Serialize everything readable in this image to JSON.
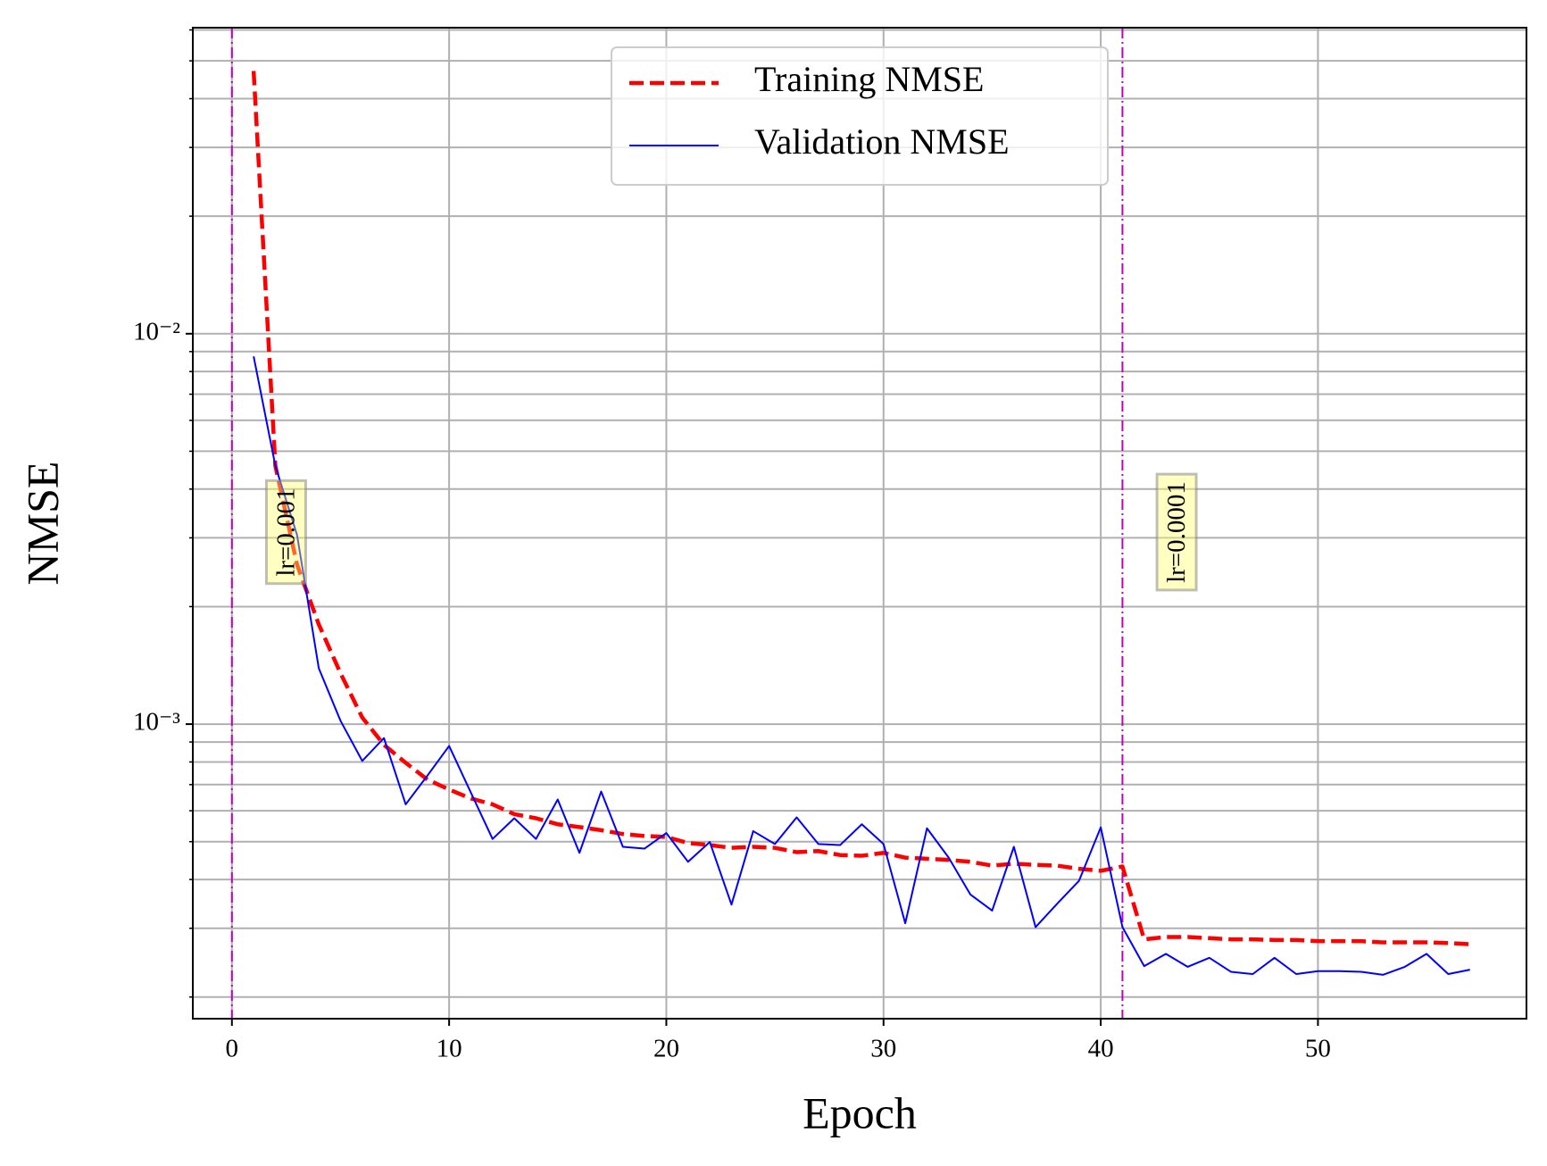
{
  "chart_data": {
    "type": "line",
    "xlabel": "Epoch",
    "ylabel": "NMSE",
    "yscale": "log",
    "grid": true,
    "legend_loc": "upper center",
    "xlim": [
      -1.8,
      59.6
    ],
    "ylim": [
      0.000176,
      0.0608
    ],
    "xticks": [
      0,
      10,
      20,
      30,
      40,
      50
    ],
    "yticks": [
      {
        "value": 0.001,
        "label": "10⁻³"
      },
      {
        "value": 0.01,
        "label": "10⁻²"
      }
    ],
    "yminorticks": [
      0.0002,
      0.0003,
      0.0004,
      0.0005,
      0.0006,
      0.0007,
      0.0008,
      0.0009,
      0.002,
      0.003,
      0.004,
      0.005,
      0.006,
      0.007,
      0.008,
      0.009,
      0.02,
      0.03,
      0.04,
      0.05,
      0.06
    ],
    "vlines": [
      {
        "x": 0,
        "label": "lr=0.001",
        "color": "#bf00bf"
      },
      {
        "x": 41,
        "label": "lr=0.0001",
        "color": "#bf00bf"
      }
    ],
    "x": [
      1,
      2,
      3,
      4,
      5,
      6,
      7,
      8,
      9,
      10,
      11,
      12,
      13,
      14,
      15,
      16,
      17,
      18,
      19,
      20,
      21,
      22,
      23,
      24,
      25,
      26,
      27,
      28,
      29,
      30,
      31,
      32,
      33,
      34,
      35,
      36,
      37,
      38,
      39,
      40,
      41,
      42,
      43,
      44,
      45,
      46,
      47,
      48,
      49,
      50,
      51,
      52,
      53,
      54,
      55,
      56,
      57
    ],
    "series": [
      {
        "name": "Training NMSE",
        "color": "#ff0000",
        "dash": true,
        "values": [
          0.0471,
          0.00459,
          0.00256,
          0.0018,
          0.00135,
          0.00104,
          0.000885,
          0.000796,
          0.000721,
          0.00068,
          0.000645,
          0.000623,
          0.000588,
          0.000574,
          0.000554,
          0.000545,
          0.000535,
          0.000523,
          0.000517,
          0.000514,
          0.000496,
          0.00049,
          0.000482,
          0.000485,
          0.000482,
          0.00047,
          0.000473,
          0.000462,
          0.00046,
          0.000468,
          0.000455,
          0.000452,
          0.000449,
          0.000444,
          0.000434,
          0.000439,
          0.000436,
          0.000434,
          0.000426,
          0.000421,
          0.000432,
          0.000281,
          0.000285,
          0.000285,
          0.000283,
          0.000281,
          0.000281,
          0.00028,
          0.00028,
          0.000278,
          0.000278,
          0.000278,
          0.000276,
          0.000276,
          0.000276,
          0.000275,
          0.000273
        ]
      },
      {
        "name": "Validation NMSE",
        "color": "#0000ff",
        "dash": false,
        "values": [
          0.00875,
          0.00459,
          0.00305,
          0.00139,
          0.00102,
          0.000805,
          0.000921,
          0.000623,
          0.000738,
          0.000879,
          0.000668,
          0.000508,
          0.000574,
          0.000508,
          0.000641,
          0.000468,
          0.000672,
          0.000485,
          0.00048,
          0.000526,
          0.000444,
          0.000499,
          0.000345,
          0.000532,
          0.000493,
          0.000577,
          0.000493,
          0.00049,
          0.000554,
          0.000493,
          0.000309,
          0.000541,
          0.000455,
          0.000366,
          0.000333,
          0.000485,
          0.000302,
          0.000347,
          0.000397,
          0.000544,
          0.000302,
          0.00024,
          0.000258,
          0.000239,
          0.000252,
          0.000232,
          0.000229,
          0.000252,
          0.000229,
          0.000233,
          0.000233,
          0.000232,
          0.000228,
          0.000239,
          0.000258,
          0.000229,
          0.000235
        ]
      }
    ]
  }
}
